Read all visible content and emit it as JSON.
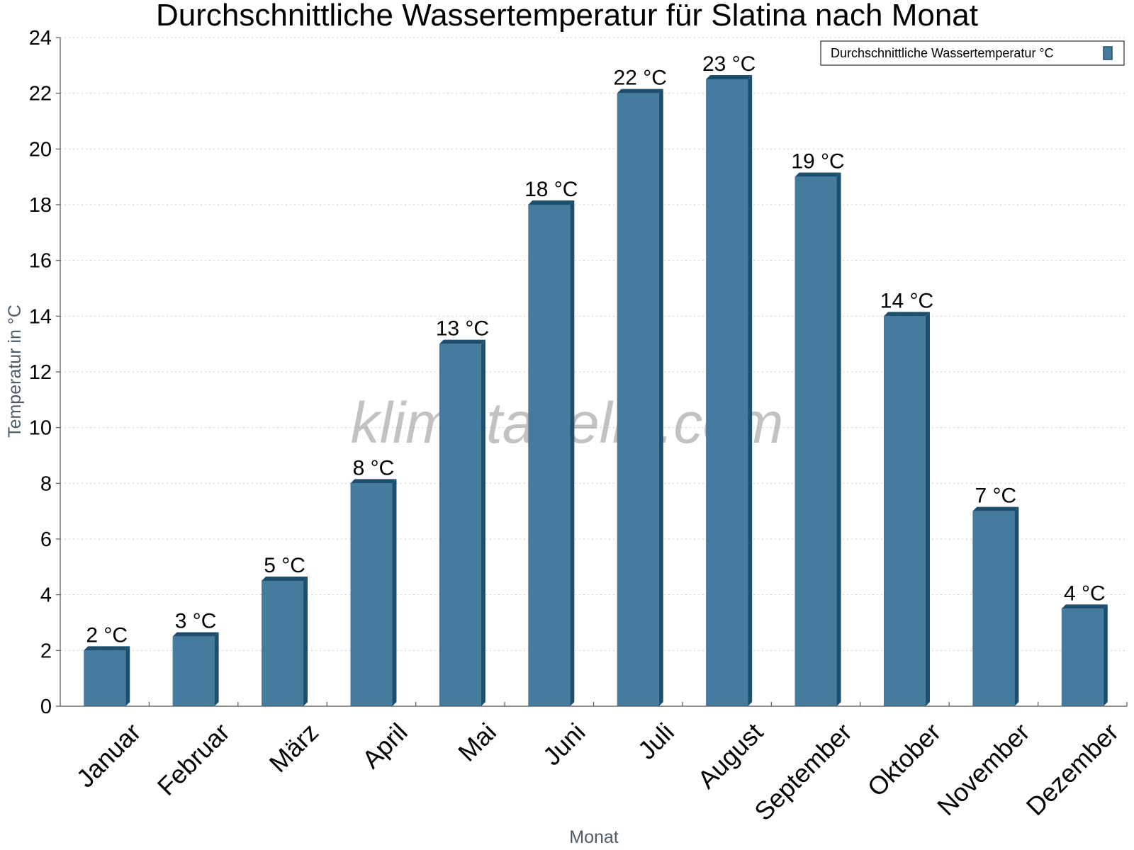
{
  "colors": {
    "bar": "#457b9d",
    "bar_side": "#1d4e6e",
    "bar_top": "#1d4e6e"
  },
  "chart_data": {
    "type": "bar",
    "title": "Durchschnittliche Wassertemperatur für Slatina nach Monat",
    "xlabel": "Monat",
    "ylabel": "Temperatur in °C",
    "ylim": [
      0,
      24
    ],
    "yticks": [
      "0",
      "2",
      "4",
      "6",
      "8",
      "10",
      "12",
      "14",
      "16",
      "18",
      "20",
      "22",
      "24"
    ],
    "grid": true,
    "legend_position": "top-right",
    "categories": [
      "Januar",
      "Februar",
      "März",
      "April",
      "Mai",
      "Juni",
      "Juli",
      "August",
      "September",
      "Oktober",
      "November",
      "Dezember"
    ],
    "series": [
      {
        "name": "Durchschnittliche Wassertemperatur °C",
        "values": [
          2,
          2.5,
          4.5,
          8,
          13,
          18,
          22,
          22.5,
          19,
          14,
          7,
          3.5
        ],
        "labels": [
          "2 °C",
          "3 °C",
          "5 °C",
          "8 °C",
          "13 °C",
          "18 °C",
          "22 °C",
          "23 °C",
          "19 °C",
          "14 °C",
          "7 °C",
          "4 °C"
        ]
      }
    ],
    "watermark": "klimatabelle.com"
  }
}
